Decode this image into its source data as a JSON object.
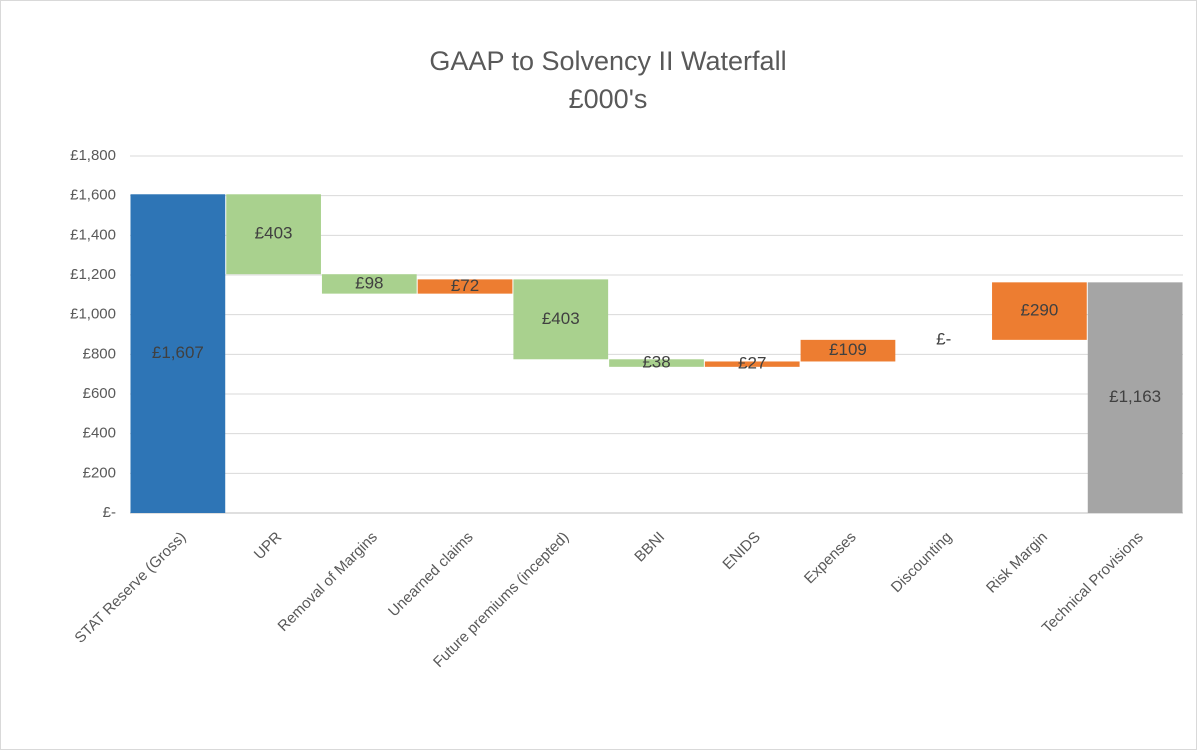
{
  "chart_data": {
    "type": "waterfall",
    "title": "GAAP to Solvency II Waterfall",
    "subtitle": "£000's",
    "categories": [
      "STAT Reserve (Gross)",
      "UPR",
      "Removal of Margins",
      "Unearned claims",
      "Future premiums (incepted)",
      "BBNI",
      "ENIDS",
      "Expenses",
      "Discounting",
      "Risk Margin",
      "Technical Provisions"
    ],
    "values": [
      1607,
      -403,
      -98,
      72,
      -403,
      -38,
      27,
      109,
      0,
      290,
      1163
    ],
    "value_labels": [
      "£1,607",
      "£403",
      "£98",
      "£72",
      "£403",
      "£38",
      "£27",
      "£109",
      "£-",
      "£290",
      "£1,163"
    ],
    "is_total": [
      true,
      false,
      false,
      false,
      false,
      false,
      false,
      false,
      false,
      false,
      true
    ],
    "colors": [
      "#2e75b6",
      "#a9d18e",
      "#a9d18e",
      "#ed7d31",
      "#a9d18e",
      "#a9d18e",
      "#ed7d31",
      "#ed7d31",
      "#ed7d31",
      "#ed7d31",
      "#a5a5a5"
    ],
    "ylim": [
      0,
      1800
    ],
    "yticks": [
      {
        "value": 0,
        "label": "£-"
      },
      {
        "value": 200,
        "label": "£200"
      },
      {
        "value": 400,
        "label": "£400"
      },
      {
        "value": 600,
        "label": "£600"
      },
      {
        "value": 800,
        "label": "£800"
      },
      {
        "value": 1000,
        "label": "£1,000"
      },
      {
        "value": 1200,
        "label": "£1,200"
      },
      {
        "value": 1400,
        "label": "£1,400"
      },
      {
        "value": 1600,
        "label": "£1,600"
      },
      {
        "value": 1800,
        "label": "£1,800"
      }
    ],
    "grid": true
  }
}
